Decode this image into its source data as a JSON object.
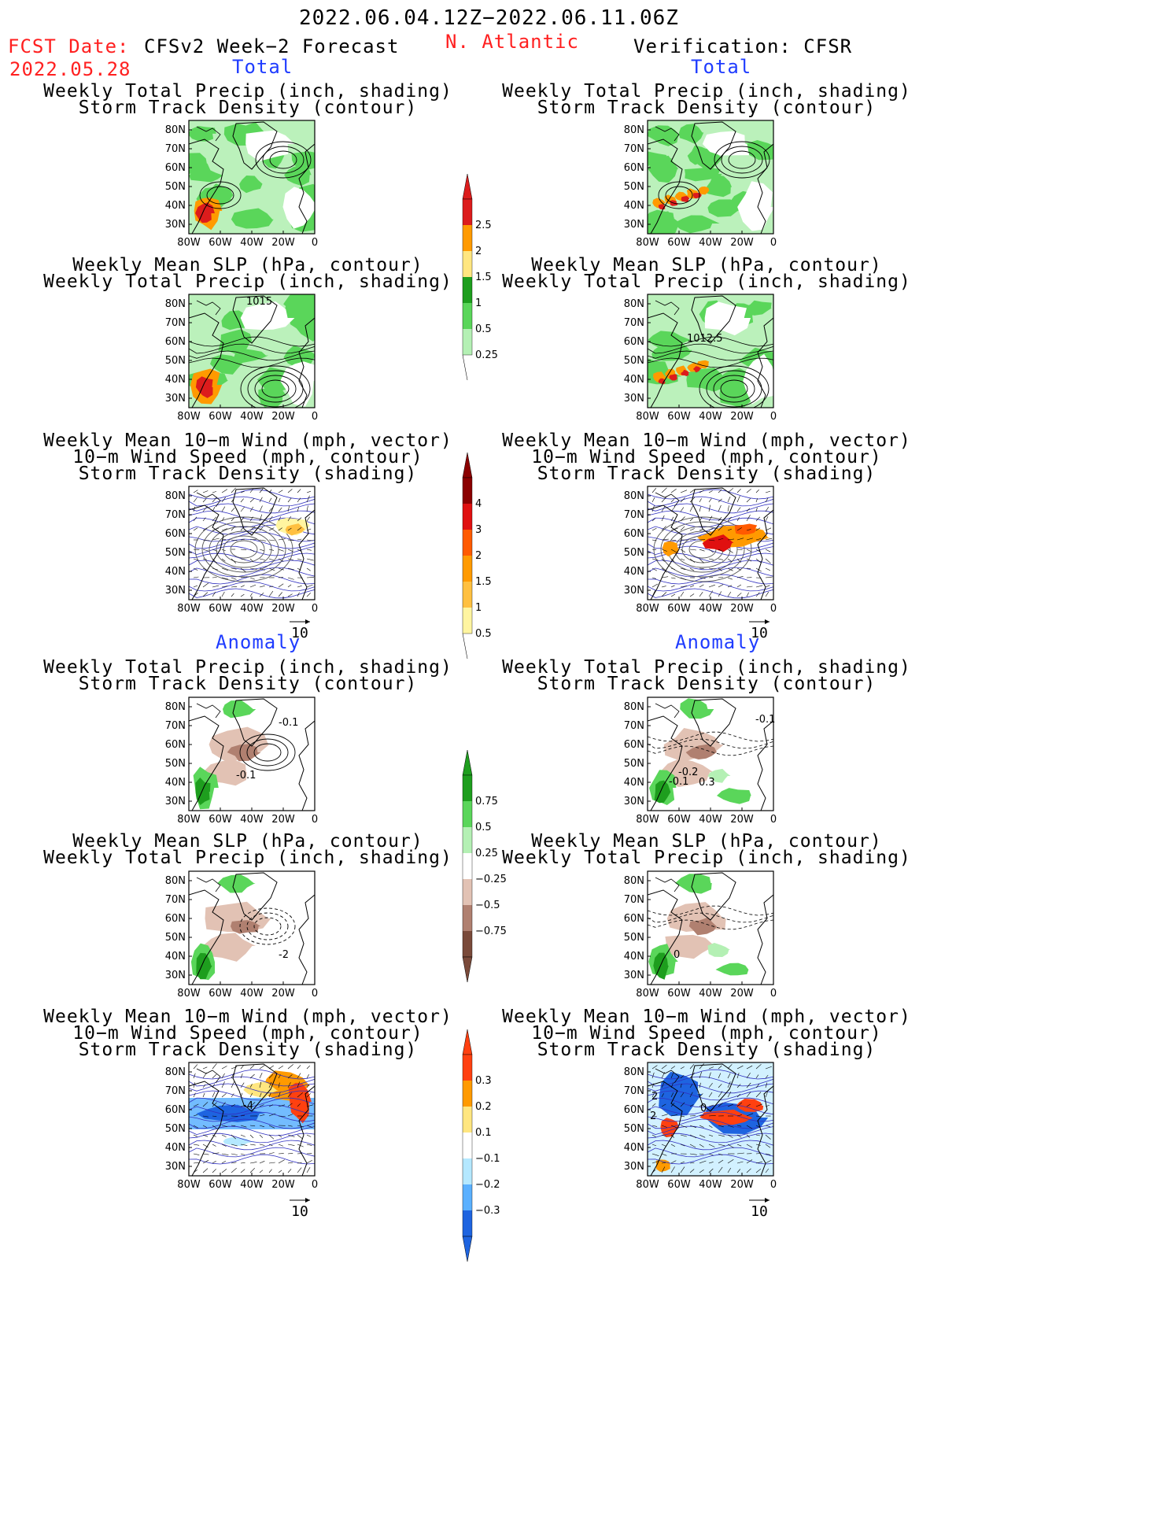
{
  "header": {
    "date_range": "2022.06.04.12Z−2022.06.11.06Z",
    "fcst_label": "FCST Date:",
    "fcst_date": "2022.05.28",
    "left_title": "CFSv2 Week−2 Forecast",
    "region": "N. Atlantic",
    "right_title": "Verification: CFSR"
  },
  "sections": {
    "total": "Total",
    "anomaly": "Anomaly"
  },
  "panel_titles": {
    "precip_track": [
      "Weekly Total Precip (inch, shading)",
      "Storm Track Density (contour)"
    ],
    "slp_precip": [
      "Weekly Mean SLP (hPa, contour)",
      "Weekly Total Precip (inch, shading)"
    ],
    "wind_track": [
      "Weekly Mean 10−m Wind (mph, vector)",
      "10−m Wind Speed (mph, contour)",
      "Storm Track Density (shading)"
    ]
  },
  "axes": {
    "lat_labels": [
      "80N",
      "70N",
      "60N",
      "50N",
      "40N",
      "30N"
    ],
    "lon_labels": [
      "80W",
      "60W",
      "40W",
      "20W",
      "0"
    ]
  },
  "vector_ref": "10",
  "map_labels": {
    "slp_fcst_total": "1015",
    "slp_verif_total": "1012.5",
    "track_fcst_anom": "-0.1",
    "track_fcst_anom2": "-0.1",
    "track_verif_anom": "-0.1",
    "track_verif_anom2": "-0.2",
    "track_verif_anom3": "-0.1",
    "track_verif_anom4": "0.3",
    "slp_fcst_anom": "-2",
    "slp_verif_anom": "0",
    "wind_fcst_anom": "-4",
    "wind_verif_anom": "2",
    "wind_verif_anom2": "2",
    "wind_verif_anom3": "0"
  },
  "colorbars": {
    "precip_total": {
      "labels": [
        "2.5",
        "2",
        "1.5",
        "1",
        "0.5",
        "0.25"
      ],
      "colors": [
        "#dc1c1c",
        "#ff9a00",
        "#ffe680",
        "#1e9e1e",
        "#5ad65a",
        "#b4f0b4"
      ]
    },
    "track_total": {
      "labels": [
        "4",
        "3",
        "2",
        "1.5",
        "1",
        "0.5"
      ],
      "colors": [
        "#8b0000",
        "#e01010",
        "#ff5a00",
        "#ff9a00",
        "#ffc040",
        "#fff5a0"
      ]
    },
    "precip_anom": {
      "labels": [
        "0.75",
        "0.5",
        "0.25",
        "−0.25",
        "−0.5",
        "−0.75"
      ],
      "colors": [
        "#1e9e1e",
        "#5ad65a",
        "#b4f0b4",
        "#ffffff",
        "#e2c2b4",
        "#b08070",
        "#7a4a3a"
      ]
    },
    "track_anom": {
      "labels": [
        "0.3",
        "0.2",
        "0.1",
        "−0.1",
        "−0.2",
        "−0.3"
      ],
      "colors": [
        "#ff4010",
        "#ff9a00",
        "#ffe680",
        "#ffffff",
        "#b4e8ff",
        "#5ab0ff",
        "#1e64e0"
      ]
    }
  }
}
